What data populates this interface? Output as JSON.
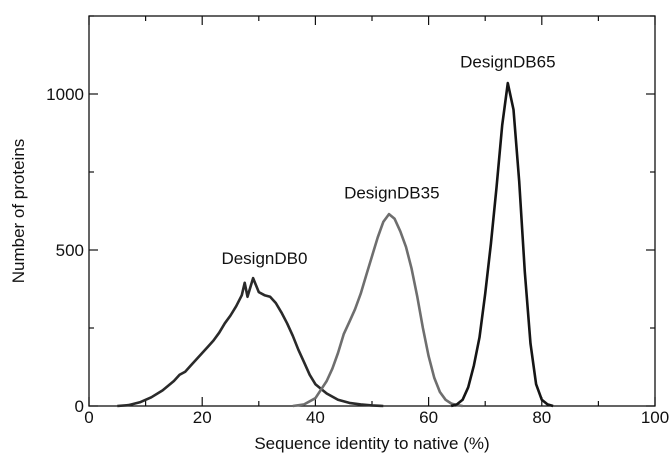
{
  "chart_data": {
    "type": "line",
    "title": "",
    "xlabel": "Sequence identity to native (%)",
    "ylabel": "Number of proteins",
    "xlim": [
      0,
      100
    ],
    "ylim": [
      0,
      1250
    ],
    "xticks": [
      0,
      20,
      40,
      60,
      80,
      100
    ],
    "yticks": [
      0,
      500,
      1000
    ],
    "grid": false,
    "legend": "none",
    "series": [
      {
        "name": "DesignDB0",
        "color": "#2a2a2a",
        "x": [
          5,
          7,
          9,
          11,
          13,
          15,
          16,
          17,
          18,
          19,
          20,
          21,
          22,
          23,
          24,
          25,
          26,
          27,
          27.5,
          28,
          29,
          30,
          31,
          32,
          33,
          34,
          35,
          36,
          37,
          38,
          39,
          40,
          42,
          44,
          46,
          48,
          50,
          52
        ],
        "y": [
          0,
          3,
          12,
          28,
          50,
          80,
          100,
          110,
          130,
          150,
          170,
          190,
          210,
          235,
          265,
          290,
          320,
          355,
          395,
          350,
          410,
          365,
          355,
          350,
          330,
          300,
          265,
          225,
          180,
          140,
          100,
          70,
          40,
          20,
          10,
          5,
          2,
          0
        ]
      },
      {
        "name": "DesignDB35",
        "color": "#6e6e6e",
        "x": [
          36,
          38,
          40,
          42,
          43,
          44,
          45,
          46,
          47,
          48,
          49,
          50,
          51,
          52,
          53,
          54,
          55,
          56,
          57,
          58,
          59,
          60,
          61,
          62,
          63,
          64,
          65,
          66
        ],
        "y": [
          0,
          5,
          25,
          80,
          120,
          170,
          230,
          270,
          310,
          360,
          420,
          480,
          540,
          590,
          615,
          600,
          560,
          510,
          440,
          350,
          250,
          160,
          90,
          45,
          20,
          8,
          3,
          0
        ]
      },
      {
        "name": "DesignDB65",
        "color": "#151515",
        "x": [
          64,
          65,
          66,
          67,
          68,
          69,
          70,
          71,
          72,
          73,
          74,
          75,
          76,
          77,
          78,
          79,
          80,
          81,
          82
        ],
        "y": [
          0,
          5,
          20,
          60,
          130,
          220,
          360,
          520,
          700,
          900,
          1035,
          950,
          720,
          430,
          200,
          70,
          20,
          5,
          0
        ]
      }
    ],
    "annotations": [
      {
        "text": "DesignDB0",
        "x": 31,
        "y": 455
      },
      {
        "text": "DesignDB35",
        "x": 53.5,
        "y": 665
      },
      {
        "text": "DesignDB65",
        "x": 74,
        "y": 1085
      }
    ]
  }
}
